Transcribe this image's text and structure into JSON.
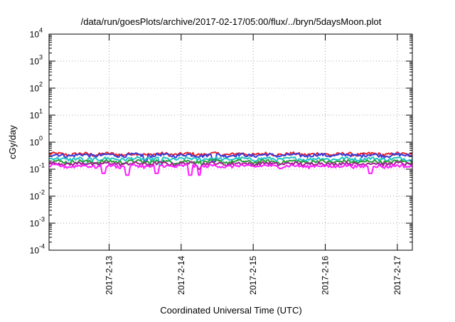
{
  "chart_data": {
    "type": "line",
    "title": "/data/run/goesPlots/archive/2017-02-17/05:00/flux/../bryn/5daysMoon.plot",
    "xlabel": "Coordinated Universal Time (UTC)",
    "ylabel": "cGy/day",
    "yscale": "log",
    "ylim": [
      0.0001,
      10000
    ],
    "y_ticks": [
      {
        "base": "10",
        "exp": "4",
        "value": 10000
      },
      {
        "base": "10",
        "exp": "3",
        "value": 1000
      },
      {
        "base": "10",
        "exp": "2",
        "value": 100
      },
      {
        "base": "10",
        "exp": "1",
        "value": 10
      },
      {
        "base": "10",
        "exp": "0",
        "value": 1
      },
      {
        "base": "10",
        "exp": "-1",
        "value": 0.1
      },
      {
        "base": "10",
        "exp": "-2",
        "value": 0.01
      },
      {
        "base": "10",
        "exp": "-3",
        "value": 0.001
      },
      {
        "base": "10",
        "exp": "-4",
        "value": 0.0001
      }
    ],
    "x_ticks": [
      "2017-2-13",
      "2017-2-14",
      "2017-2-15",
      "2017-2-16",
      "2017-2-17"
    ],
    "xlim": [
      "2017-02-12 04:00",
      "2017-02-17 05:00"
    ],
    "grid": true,
    "legend": "none",
    "series": [
      {
        "color": "#e8242c",
        "level": 0.36,
        "dips": []
      },
      {
        "color": "#3a3ad9",
        "level": 0.33,
        "dips": [
          [
            "2017-02-13 12:00",
            0.2
          ],
          [
            "2017-02-14 11:00",
            0.19
          ]
        ]
      },
      {
        "color": "#22c4c4",
        "level": 0.24,
        "dips": [
          [
            "2017-02-12 16:00",
            0.15
          ],
          [
            "2017-02-13 17:00",
            0.14
          ]
        ]
      },
      {
        "color": "#2a9d3a",
        "level": 0.19,
        "dips": []
      },
      {
        "color": "#a02090",
        "level": 0.16,
        "dips": [
          [
            "2017-02-14 06:00",
            0.1
          ]
        ]
      },
      {
        "color": "#ff1cff",
        "level": 0.13,
        "dips": [
          [
            "2017-02-12 22:00",
            0.07
          ],
          [
            "2017-02-13 06:00",
            0.06
          ],
          [
            "2017-02-13 16:00",
            0.07
          ],
          [
            "2017-02-14 03:00",
            0.06
          ],
          [
            "2017-02-14 06:00",
            0.06
          ],
          [
            "2017-02-16 15:00",
            0.07
          ]
        ]
      }
    ]
  }
}
